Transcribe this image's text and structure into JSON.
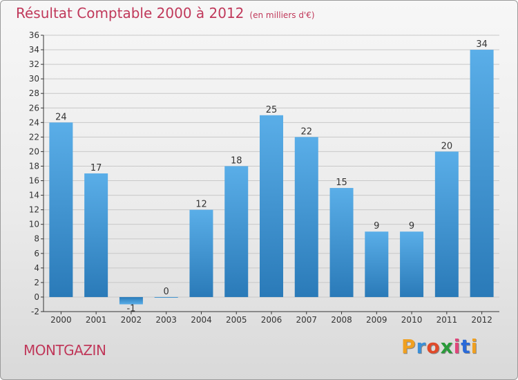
{
  "title": "Résultat Comptable 2000 à 2012",
  "subtitle": "(en milliers d'€)",
  "location": "MONTGAZIN",
  "brand": "Proxiti",
  "colors": {
    "title": "#c0385a",
    "bar_top": "#5aaee8",
    "bar_bottom": "#2a7ab8",
    "grid": "#c8c8c8"
  },
  "chart_data": {
    "type": "bar",
    "title": "Résultat Comptable 2000 à 2012",
    "subtitle": "(en milliers d'€)",
    "xlabel": "",
    "ylabel": "",
    "categories": [
      "2000",
      "2001",
      "2002",
      "2003",
      "2004",
      "2005",
      "2006",
      "2007",
      "2008",
      "2009",
      "2010",
      "2011",
      "2012"
    ],
    "values": [
      24,
      17,
      -1,
      0,
      12,
      18,
      25,
      22,
      15,
      9,
      9,
      20,
      34
    ],
    "data_labels": [
      "24",
      "17",
      "-1",
      "0",
      "12",
      "18",
      "25",
      "22",
      "15",
      "9",
      "9",
      "20",
      "34"
    ],
    "ylim": [
      -2,
      36
    ],
    "yticks": [
      -2,
      0,
      2,
      4,
      6,
      8,
      10,
      12,
      14,
      16,
      18,
      20,
      22,
      24,
      26,
      28,
      30,
      32,
      34,
      36
    ],
    "grid": true,
    "legend": "none"
  }
}
